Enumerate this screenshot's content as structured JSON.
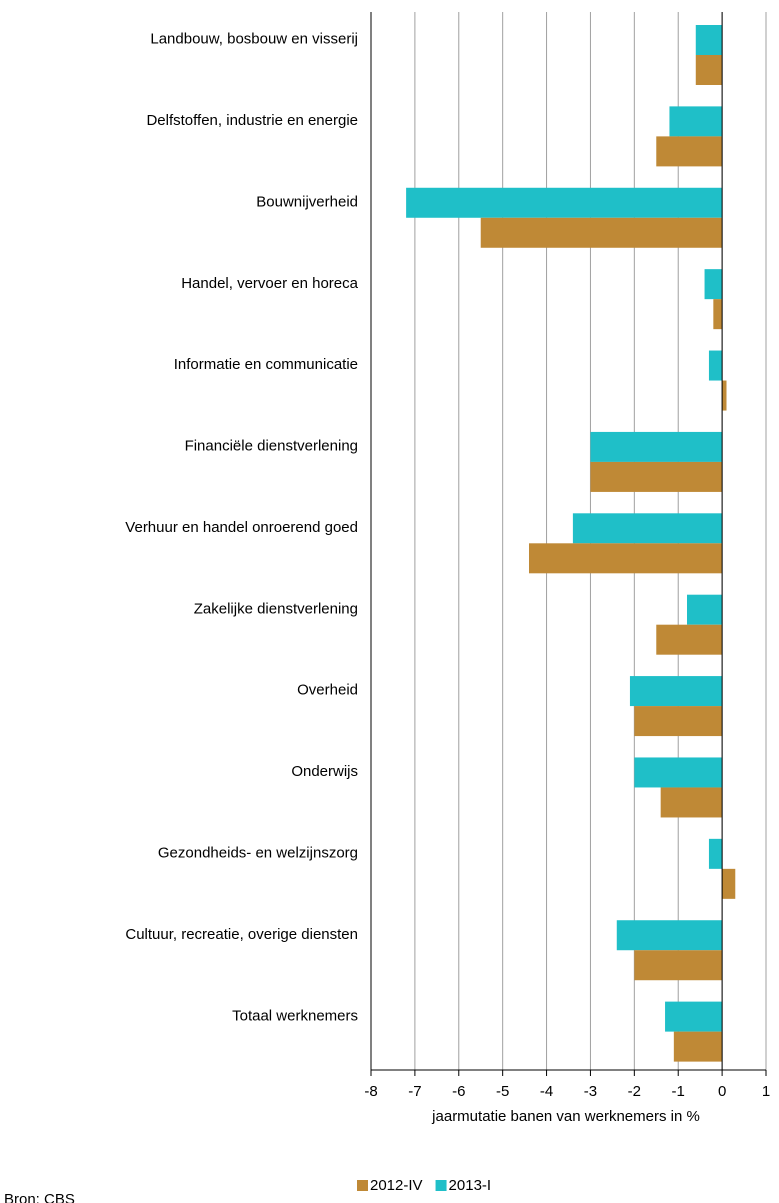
{
  "chart_data": {
    "type": "barh",
    "categories": [
      "Landbouw, bosbouw en visserij",
      "Delfstoffen, industrie en energie",
      "Bouwnijverheid",
      "Handel, vervoer en horeca",
      "Informatie en communicatie",
      "Financiële dienstverlening",
      "Verhuur en handel onroerend goed",
      "Zakelijke dienstverlening",
      "Overheid",
      "Onderwijs",
      "Gezondheids- en welzijnszorg",
      "Cultuur, recreatie, overige diensten",
      "Totaal werknemers"
    ],
    "series": [
      {
        "name": "2012-IV",
        "color": "#bf8936",
        "values": [
          -0.6,
          -1.5,
          -5.5,
          -0.2,
          0.1,
          -3.0,
          -4.4,
          -1.5,
          -2.0,
          -1.4,
          0.3,
          -2.0,
          -1.1
        ]
      },
      {
        "name": "2013-I",
        "color": "#1fbfc8",
        "values": [
          -0.6,
          -1.2,
          -7.2,
          -0.4,
          -0.3,
          -3.0,
          -3.4,
          -0.8,
          -2.1,
          -2.0,
          -0.3,
          -2.4,
          -1.3
        ]
      }
    ],
    "xlim": [
      -8,
      1
    ],
    "xticks": [
      -8,
      -7,
      -6,
      -5,
      -4,
      -3,
      -2,
      -1,
      0,
      1
    ],
    "xlabel": "jaarmutatie banen van werknemers in %",
    "grid": true,
    "legend": "bottom",
    "source": "Bron: CBS"
  }
}
